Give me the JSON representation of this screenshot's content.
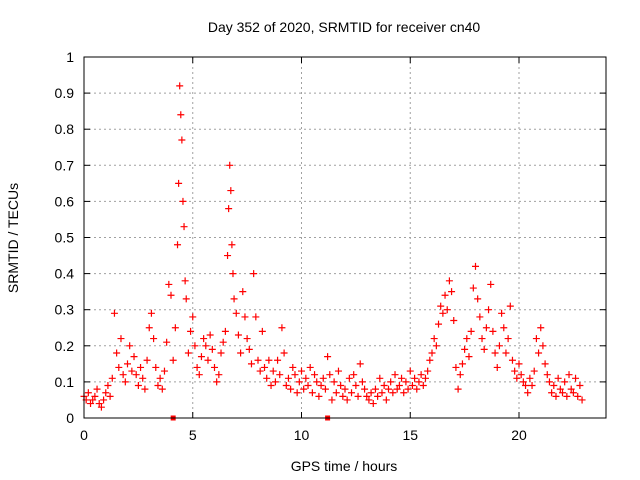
{
  "chart_data": {
    "type": "scatter",
    "title": "Day 352 of 2020, SRMTID for receiver cn40",
    "xlabel": "GPS time / hours",
    "ylabel": "SRMTID / TECUs",
    "xlim": [
      0,
      24
    ],
    "ylim": [
      0,
      1
    ],
    "x_ticks": [
      0,
      5,
      10,
      15,
      20
    ],
    "y_ticks": [
      0,
      0.1,
      0.2,
      0.3,
      0.4,
      0.5,
      0.6,
      0.7,
      0.8,
      0.9,
      1
    ],
    "x_tick_labels": [
      "0",
      "5",
      "10",
      "15",
      "20"
    ],
    "y_tick_labels": [
      "0",
      "0.1",
      "0.2",
      "0.3",
      "0.4",
      "0.5",
      "0.6",
      "0.7",
      "0.8",
      "0.9",
      "1"
    ],
    "grid": true,
    "series": [
      {
        "name": "SRMTID",
        "color": "#ff0000",
        "marker": "plus",
        "points": [
          [
            0.0,
            0.06
          ],
          [
            0.1,
            0.05
          ],
          [
            0.2,
            0.07
          ],
          [
            0.3,
            0.04
          ],
          [
            0.4,
            0.05
          ],
          [
            0.5,
            0.06
          ],
          [
            0.6,
            0.08
          ],
          [
            0.7,
            0.04
          ],
          [
            0.8,
            0.03
          ],
          [
            0.9,
            0.05
          ],
          [
            1.0,
            0.07
          ],
          [
            1.1,
            0.09
          ],
          [
            1.2,
            0.06
          ],
          [
            1.3,
            0.11
          ],
          [
            1.4,
            0.29
          ],
          [
            1.5,
            0.18
          ],
          [
            1.6,
            0.14
          ],
          [
            1.7,
            0.22
          ],
          [
            1.8,
            0.12
          ],
          [
            1.9,
            0.1
          ],
          [
            2.0,
            0.15
          ],
          [
            2.1,
            0.2
          ],
          [
            2.2,
            0.13
          ],
          [
            2.3,
            0.17
          ],
          [
            2.4,
            0.12
          ],
          [
            2.5,
            0.09
          ],
          [
            2.6,
            0.14
          ],
          [
            2.7,
            0.11
          ],
          [
            2.8,
            0.08
          ],
          [
            2.9,
            0.16
          ],
          [
            3.0,
            0.25
          ],
          [
            3.1,
            0.29
          ],
          [
            3.2,
            0.22
          ],
          [
            3.3,
            0.14
          ],
          [
            3.4,
            0.09
          ],
          [
            3.5,
            0.11
          ],
          [
            3.6,
            0.08
          ],
          [
            3.7,
            0.13
          ],
          [
            3.8,
            0.21
          ],
          [
            3.9,
            0.37
          ],
          [
            4.0,
            0.34
          ],
          [
            4.1,
            0.16
          ],
          [
            4.2,
            0.25
          ],
          [
            4.3,
            0.48
          ],
          [
            4.35,
            0.65
          ],
          [
            4.4,
            0.92
          ],
          [
            4.45,
            0.84
          ],
          [
            4.5,
            0.77
          ],
          [
            4.55,
            0.6
          ],
          [
            4.6,
            0.53
          ],
          [
            4.65,
            0.38
          ],
          [
            4.7,
            0.33
          ],
          [
            4.8,
            0.18
          ],
          [
            4.9,
            0.24
          ],
          [
            5.0,
            0.28
          ],
          [
            5.1,
            0.2
          ],
          [
            5.2,
            0.14
          ],
          [
            5.3,
            0.12
          ],
          [
            5.4,
            0.17
          ],
          [
            5.5,
            0.22
          ],
          [
            5.6,
            0.2
          ],
          [
            5.7,
            0.16
          ],
          [
            5.8,
            0.23
          ],
          [
            5.9,
            0.19
          ],
          [
            6.0,
            0.14
          ],
          [
            6.1,
            0.1
          ],
          [
            6.2,
            0.12
          ],
          [
            6.3,
            0.18
          ],
          [
            6.4,
            0.21
          ],
          [
            6.5,
            0.24
          ],
          [
            6.6,
            0.45
          ],
          [
            6.65,
            0.58
          ],
          [
            6.7,
            0.7
          ],
          [
            6.75,
            0.63
          ],
          [
            6.8,
            0.48
          ],
          [
            6.85,
            0.4
          ],
          [
            6.9,
            0.33
          ],
          [
            7.0,
            0.29
          ],
          [
            7.1,
            0.23
          ],
          [
            7.2,
            0.18
          ],
          [
            7.3,
            0.35
          ],
          [
            7.4,
            0.28
          ],
          [
            7.5,
            0.22
          ],
          [
            7.6,
            0.19
          ],
          [
            7.7,
            0.15
          ],
          [
            7.8,
            0.4
          ],
          [
            7.9,
            0.28
          ],
          [
            8.0,
            0.16
          ],
          [
            8.1,
            0.13
          ],
          [
            8.2,
            0.24
          ],
          [
            8.3,
            0.14
          ],
          [
            8.4,
            0.11
          ],
          [
            8.5,
            0.16
          ],
          [
            8.6,
            0.09
          ],
          [
            8.7,
            0.13
          ],
          [
            8.8,
            0.1
          ],
          [
            8.9,
            0.16
          ],
          [
            9.0,
            0.12
          ],
          [
            9.1,
            0.25
          ],
          [
            9.2,
            0.18
          ],
          [
            9.3,
            0.09
          ],
          [
            9.4,
            0.11
          ],
          [
            9.5,
            0.08
          ],
          [
            9.6,
            0.14
          ],
          [
            9.7,
            0.12
          ],
          [
            9.8,
            0.07
          ],
          [
            9.9,
            0.1
          ],
          [
            10.0,
            0.13
          ],
          [
            10.1,
            0.08
          ],
          [
            10.2,
            0.11
          ],
          [
            10.3,
            0.09
          ],
          [
            10.4,
            0.14
          ],
          [
            10.5,
            0.07
          ],
          [
            10.6,
            0.12
          ],
          [
            10.7,
            0.1
          ],
          [
            10.8,
            0.06
          ],
          [
            10.9,
            0.09
          ],
          [
            11.0,
            0.11
          ],
          [
            11.1,
            0.08
          ],
          [
            11.2,
            0.17
          ],
          [
            11.3,
            0.12
          ],
          [
            11.4,
            0.05
          ],
          [
            11.5,
            0.1
          ],
          [
            11.6,
            0.07
          ],
          [
            11.7,
            0.13
          ],
          [
            11.8,
            0.09
          ],
          [
            11.9,
            0.06
          ],
          [
            12.0,
            0.08
          ],
          [
            12.1,
            0.05
          ],
          [
            12.2,
            0.11
          ],
          [
            12.3,
            0.07
          ],
          [
            12.4,
            0.12
          ],
          [
            12.5,
            0.09
          ],
          [
            12.6,
            0.06
          ],
          [
            12.7,
            0.15
          ],
          [
            12.8,
            0.1
          ],
          [
            12.9,
            0.08
          ],
          [
            13.0,
            0.06
          ],
          [
            13.1,
            0.05
          ],
          [
            13.2,
            0.07
          ],
          [
            13.3,
            0.04
          ],
          [
            13.4,
            0.08
          ],
          [
            13.5,
            0.06
          ],
          [
            13.6,
            0.11
          ],
          [
            13.7,
            0.07
          ],
          [
            13.8,
            0.09
          ],
          [
            13.9,
            0.05
          ],
          [
            14.0,
            0.08
          ],
          [
            14.1,
            0.1
          ],
          [
            14.2,
            0.07
          ],
          [
            14.3,
            0.12
          ],
          [
            14.4,
            0.08
          ],
          [
            14.5,
            0.09
          ],
          [
            14.6,
            0.11
          ],
          [
            14.7,
            0.07
          ],
          [
            14.8,
            0.1
          ],
          [
            14.9,
            0.08
          ],
          [
            15.0,
            0.13
          ],
          [
            15.1,
            0.09
          ],
          [
            15.2,
            0.11
          ],
          [
            15.3,
            0.08
          ],
          [
            15.4,
            0.1
          ],
          [
            15.5,
            0.12
          ],
          [
            15.6,
            0.09
          ],
          [
            15.7,
            0.11
          ],
          [
            15.8,
            0.13
          ],
          [
            15.9,
            0.16
          ],
          [
            16.0,
            0.18
          ],
          [
            16.1,
            0.22
          ],
          [
            16.2,
            0.2
          ],
          [
            16.3,
            0.26
          ],
          [
            16.4,
            0.31
          ],
          [
            16.5,
            0.29
          ],
          [
            16.6,
            0.34
          ],
          [
            16.7,
            0.3
          ],
          [
            16.8,
            0.38
          ],
          [
            16.9,
            0.35
          ],
          [
            17.0,
            0.27
          ],
          [
            17.1,
            0.14
          ],
          [
            17.2,
            0.08
          ],
          [
            17.3,
            0.12
          ],
          [
            17.4,
            0.15
          ],
          [
            17.5,
            0.19
          ],
          [
            17.6,
            0.22
          ],
          [
            17.7,
            0.17
          ],
          [
            17.8,
            0.24
          ],
          [
            17.9,
            0.36
          ],
          [
            18.0,
            0.42
          ],
          [
            18.1,
            0.33
          ],
          [
            18.2,
            0.28
          ],
          [
            18.3,
            0.22
          ],
          [
            18.4,
            0.19
          ],
          [
            18.5,
            0.25
          ],
          [
            18.6,
            0.3
          ],
          [
            18.7,
            0.37
          ],
          [
            18.8,
            0.24
          ],
          [
            18.9,
            0.18
          ],
          [
            19.0,
            0.14
          ],
          [
            19.1,
            0.2
          ],
          [
            19.2,
            0.29
          ],
          [
            19.3,
            0.25
          ],
          [
            19.4,
            0.18
          ],
          [
            19.5,
            0.22
          ],
          [
            19.6,
            0.31
          ],
          [
            19.7,
            0.16
          ],
          [
            19.8,
            0.13
          ],
          [
            19.9,
            0.11
          ],
          [
            20.0,
            0.15
          ],
          [
            20.1,
            0.12
          ],
          [
            20.2,
            0.1
          ],
          [
            20.3,
            0.09
          ],
          [
            20.4,
            0.07
          ],
          [
            20.5,
            0.11
          ],
          [
            20.6,
            0.09
          ],
          [
            20.7,
            0.13
          ],
          [
            20.8,
            0.22
          ],
          [
            20.9,
            0.18
          ],
          [
            21.0,
            0.25
          ],
          [
            21.1,
            0.2
          ],
          [
            21.2,
            0.15
          ],
          [
            21.3,
            0.12
          ],
          [
            21.4,
            0.1
          ],
          [
            21.5,
            0.07
          ],
          [
            21.6,
            0.09
          ],
          [
            21.7,
            0.06
          ],
          [
            21.8,
            0.11
          ],
          [
            21.9,
            0.08
          ],
          [
            22.0,
            0.07
          ],
          [
            22.1,
            0.1
          ],
          [
            22.2,
            0.06
          ],
          [
            22.3,
            0.12
          ],
          [
            22.4,
            0.08
          ],
          [
            22.5,
            0.07
          ],
          [
            22.6,
            0.11
          ],
          [
            22.7,
            0.06
          ],
          [
            22.8,
            0.09
          ],
          [
            22.9,
            0.05
          ]
        ]
      },
      {
        "name": "marker-at-zero",
        "color": "#ff0000",
        "marker": "square",
        "points": [
          [
            4.1,
            0.0
          ],
          [
            11.2,
            0.0
          ]
        ]
      }
    ]
  }
}
